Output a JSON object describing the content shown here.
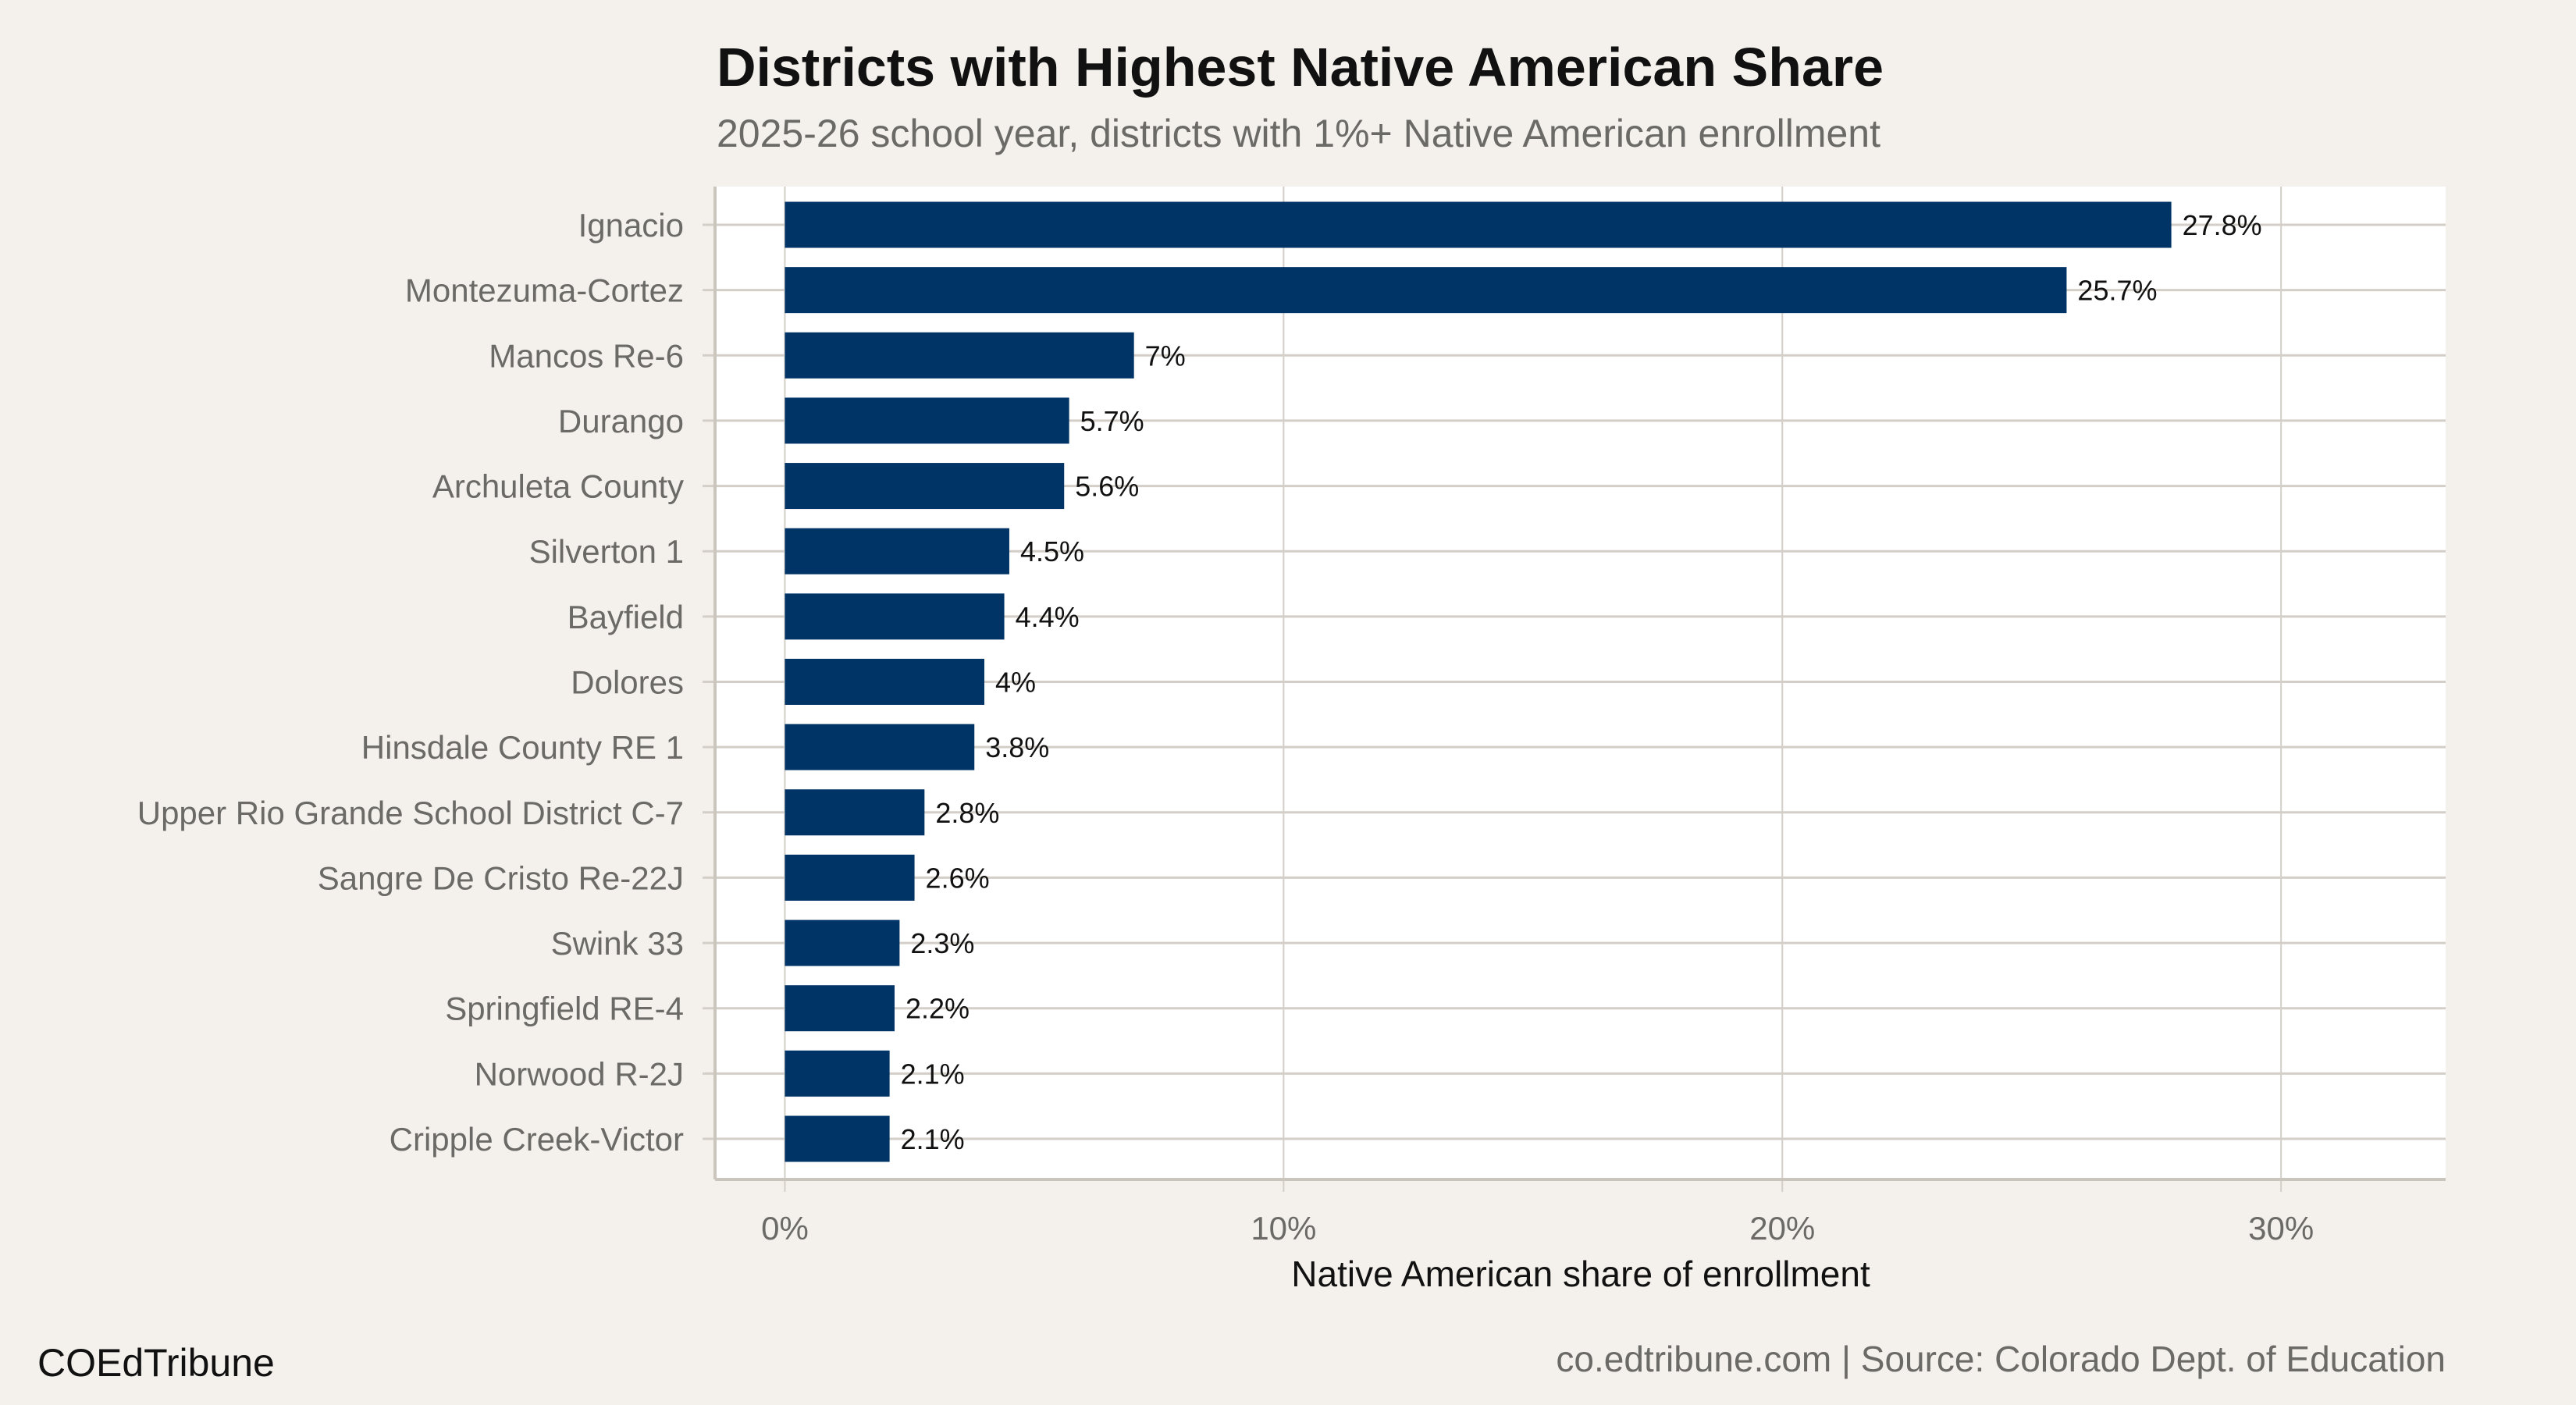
{
  "chart_data": {
    "type": "bar",
    "orientation": "horizontal",
    "title": "Districts with Highest Native American Share",
    "subtitle": "2025-26 school year, districts with 1%+ Native American enrollment",
    "xlabel": "Native American share of enrollment",
    "ylabel": "",
    "categories": [
      "Ignacio",
      "Montezuma-Cortez",
      "Mancos Re-6",
      "Durango",
      "Archuleta County",
      "Silverton 1",
      "Bayfield",
      "Dolores",
      "Hinsdale County RE 1",
      "Upper Rio Grande School District C-7",
      "Sangre De Cristo Re-22J",
      "Swink 33",
      "Springfield RE-4",
      "Norwood R-2J",
      "Cripple Creek-Victor"
    ],
    "values": [
      27.8,
      25.7,
      7,
      5.7,
      5.6,
      4.5,
      4.4,
      4,
      3.8,
      2.8,
      2.6,
      2.3,
      2.2,
      2.1,
      2.1
    ],
    "data_labels": [
      "27.8%",
      "25.7%",
      "7%",
      "5.7%",
      "5.6%",
      "4.5%",
      "4.4%",
      "4%",
      "3.8%",
      "2.8%",
      "2.6%",
      "2.3%",
      "2.2%",
      "2.1%",
      "2.1%"
    ],
    "xticks": [
      0,
      10,
      20,
      30
    ],
    "xtick_labels": [
      "0%",
      "10%",
      "20%",
      "30%"
    ],
    "xlim": [
      -1.4,
      33.3
    ],
    "grid": true,
    "bar_color": "#003366",
    "panel_background": "#ffffff",
    "background": "#f4f1ec"
  },
  "footer": {
    "brand": "COEdTribune",
    "caption": "co.edtribune.com | Source: Colorado Dept. of Education"
  }
}
